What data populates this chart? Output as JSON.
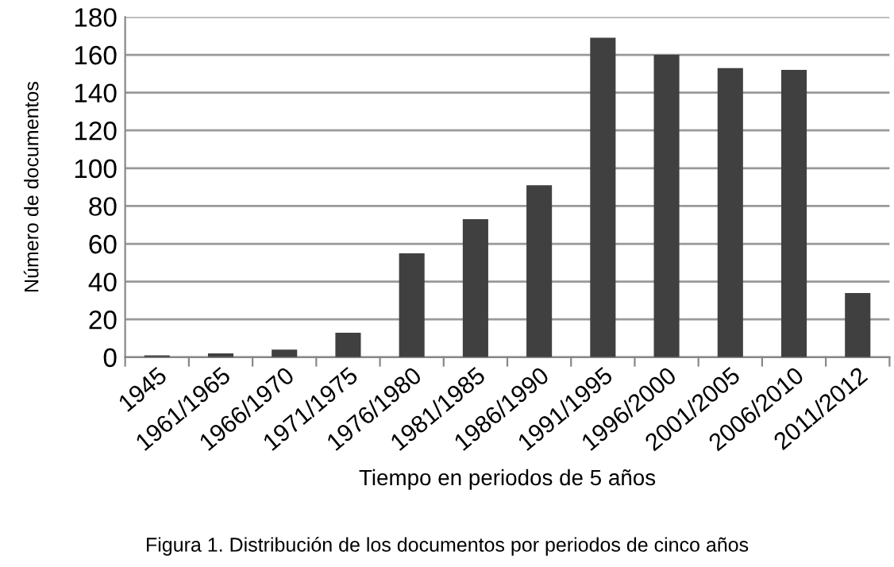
{
  "chart_data": {
    "type": "bar",
    "xlabel": "Tiempo en periodos de 5 años",
    "ylabel": "Número de documentos",
    "categories": [
      "1945",
      "1961/1965",
      "1966/1970",
      "1971/1975",
      "1976/1980",
      "1981/1985",
      "1986/1990",
      "1991/1995",
      "1996/2000",
      "2001/2005",
      "2006/2010",
      "2011/2012"
    ],
    "values": [
      1,
      2,
      4,
      13,
      55,
      73,
      91,
      169,
      160,
      153,
      152,
      34
    ],
    "color": "#404040",
    "ylim": [
      0,
      180
    ],
    "yticks": [
      0,
      20,
      40,
      60,
      80,
      100,
      120,
      140,
      160,
      180
    ],
    "grid": "y",
    "annotations": [
      "Figura 1. Distribución de los documentos por periodos de cinco años"
    ]
  }
}
